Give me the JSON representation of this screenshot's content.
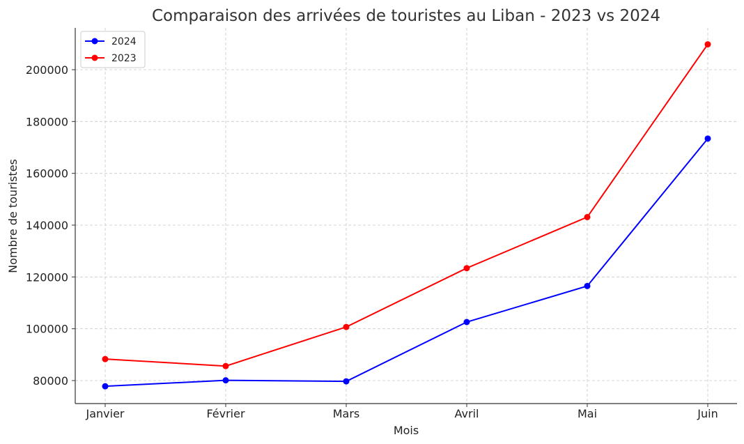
{
  "chart_data": {
    "type": "line",
    "title": "Comparaison des arrivées de touristes au Liban - 2023 vs 2024",
    "xlabel": "Mois",
    "ylabel": "Nombre de touristes",
    "categories": [
      "Janvier",
      "Février",
      "Mars",
      "Avril",
      "Mai",
      "Juin"
    ],
    "series": [
      {
        "name": "2024",
        "color": "#0000ff",
        "values": [
          77800,
          80100,
          79700,
          102600,
          116500,
          173400
        ]
      },
      {
        "name": "2023",
        "color": "#ff0000",
        "values": [
          88300,
          85600,
          100700,
          123400,
          143100,
          209800
        ]
      }
    ],
    "yticks": [
      80000,
      100000,
      120000,
      140000,
      160000,
      180000,
      200000
    ],
    "ylim": [
      70000,
      216000
    ],
    "grid": true,
    "legend_position": "upper left"
  }
}
